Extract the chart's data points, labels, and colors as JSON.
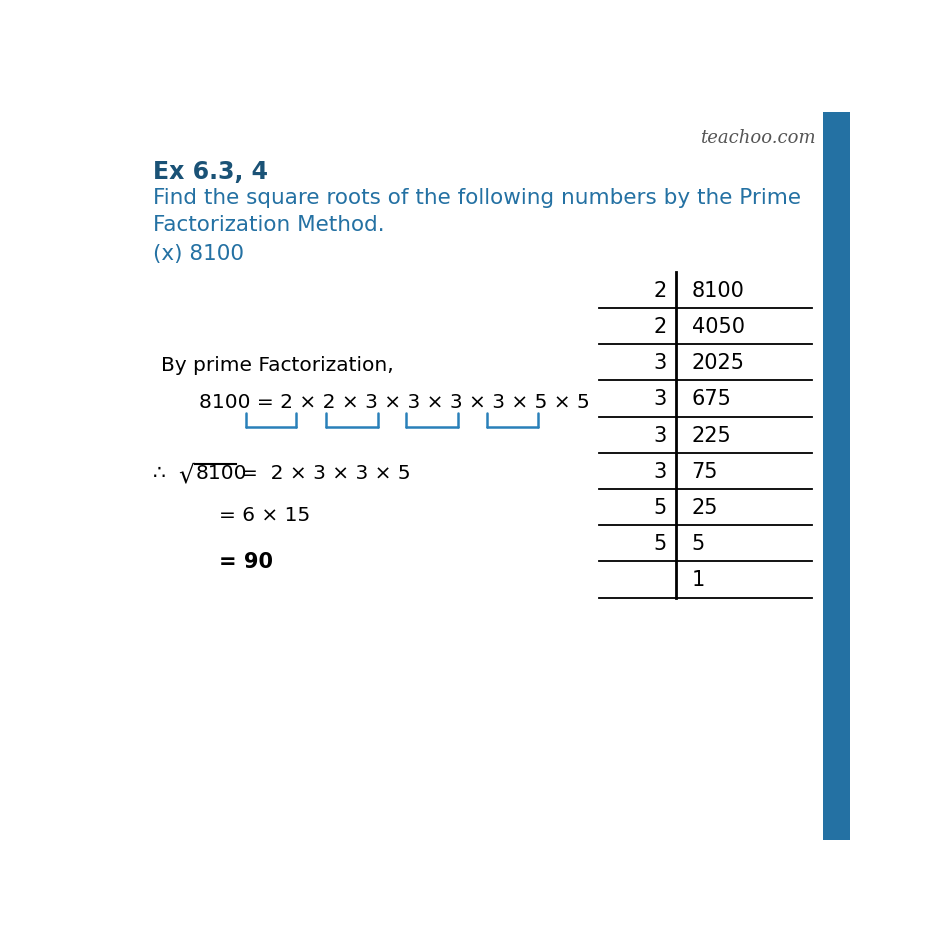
{
  "title": "Ex 6.3, 4",
  "subtitle_line1": "Find the square roots of the following numbers by the Prime",
  "subtitle_line2": "Factorization Method.",
  "problem": "(x) 8100",
  "bg_color": "#ffffff",
  "title_color": "#1a5276",
  "subtitle_color": "#2471a3",
  "problem_color": "#2471a3",
  "text_color": "#000000",
  "bracket_color": "#2980b9",
  "watermark": "teachoo.com",
  "watermark_color": "#555555",
  "right_bar_color": "#2471a3",
  "division_table": {
    "divisors": [
      "2",
      "2",
      "3",
      "3",
      "3",
      "3",
      "5",
      "5",
      ""
    ],
    "dividends": [
      "8100",
      "4050",
      "2025",
      "675",
      "225",
      "75",
      "25",
      "5",
      "1"
    ]
  },
  "by_prime": "By prime Factorization,",
  "factorization_eq": "8100 = 2 × 2 × 3 × 3 × 3 × 3 × 5 × 5",
  "sqrt_number": "8100",
  "sqrt_result": "2 × 3 × 3 × 5",
  "step2": "= 6 × 15",
  "step3": "= 90"
}
